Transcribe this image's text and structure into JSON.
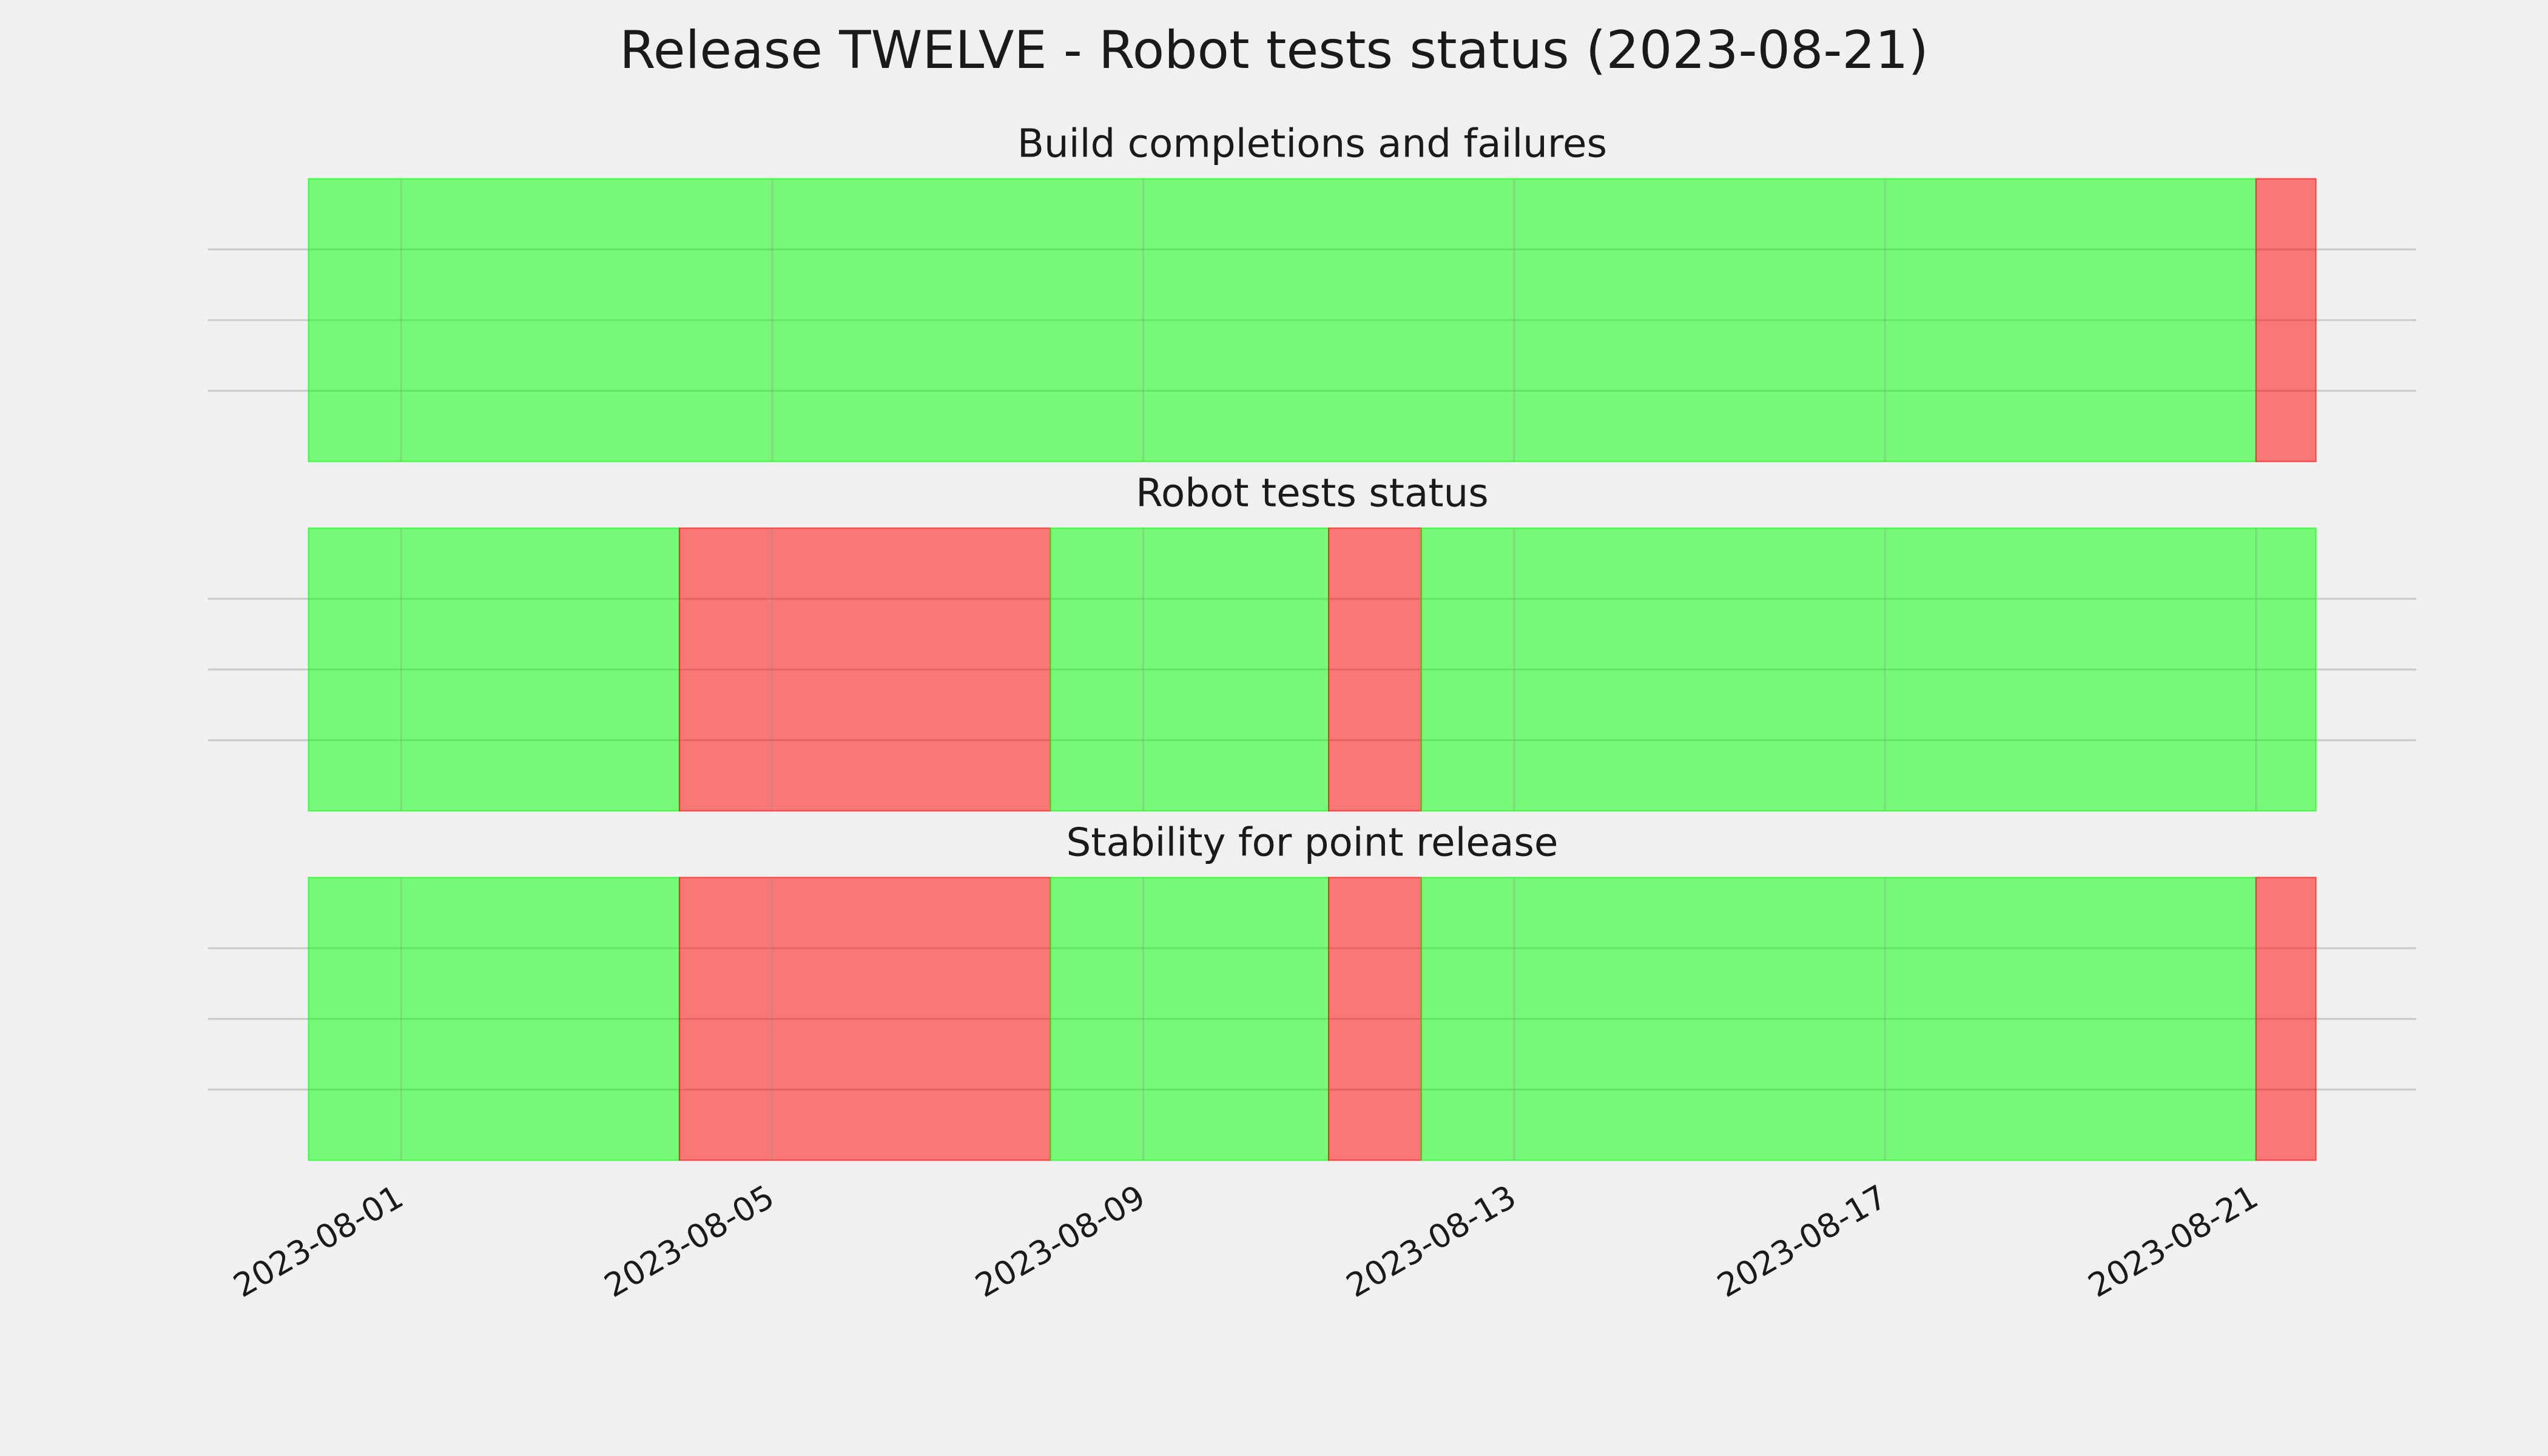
{
  "title": "Release TWELVE - Robot tests status (2023-08-21)",
  "chart_data": [
    {
      "type": "span",
      "title": "Build completions and failures",
      "spans": [
        {
          "start": "2023-07-31",
          "end": "2023-08-21",
          "color": "#00ff00"
        },
        {
          "start": "2023-08-21",
          "end": "2023-08-21T15:30",
          "color": "#ff0000"
        }
      ],
      "xlim": [
        "2023-07-29T22:00",
        "2023-08-22T17:30"
      ],
      "xticks": [
        "2023-08-01",
        "2023-08-05",
        "2023-08-09",
        "2023-08-13",
        "2023-08-17",
        "2023-08-21"
      ],
      "ylim": [
        0,
        1
      ],
      "yticks": [
        0.25,
        0.5,
        0.75
      ],
      "grid": true
    },
    {
      "type": "span",
      "title": "Robot tests status",
      "spans": [
        {
          "start": "2023-07-31",
          "end": "2023-08-04",
          "color": "#00ff00"
        },
        {
          "start": "2023-08-04",
          "end": "2023-08-08",
          "color": "#ff0000"
        },
        {
          "start": "2023-08-08",
          "end": "2023-08-11",
          "color": "#00ff00"
        },
        {
          "start": "2023-08-11",
          "end": "2023-08-12",
          "color": "#ff0000"
        },
        {
          "start": "2023-08-12",
          "end": "2023-08-21T15:30",
          "color": "#00ff00"
        }
      ],
      "xlim": [
        "2023-07-29T22:00",
        "2023-08-22T17:30"
      ],
      "xticks": [
        "2023-08-01",
        "2023-08-05",
        "2023-08-09",
        "2023-08-13",
        "2023-08-17",
        "2023-08-21"
      ],
      "ylim": [
        0,
        1
      ],
      "yticks": [
        0.25,
        0.5,
        0.75
      ],
      "grid": true
    },
    {
      "type": "span",
      "title": "Stability for point release",
      "spans": [
        {
          "start": "2023-07-31",
          "end": "2023-08-04",
          "color": "#00ff00"
        },
        {
          "start": "2023-08-04",
          "end": "2023-08-08",
          "color": "#ff0000"
        },
        {
          "start": "2023-08-08",
          "end": "2023-08-11",
          "color": "#00ff00"
        },
        {
          "start": "2023-08-11",
          "end": "2023-08-12",
          "color": "#ff0000"
        },
        {
          "start": "2023-08-12",
          "end": "2023-08-21",
          "color": "#00ff00"
        },
        {
          "start": "2023-08-21",
          "end": "2023-08-21T15:30",
          "color": "#ff0000"
        }
      ],
      "xlim": [
        "2023-07-29T22:00",
        "2023-08-22T17:30"
      ],
      "xticks": [
        "2023-08-01",
        "2023-08-05",
        "2023-08-09",
        "2023-08-13",
        "2023-08-17",
        "2023-08-21"
      ],
      "ylim": [
        0,
        1
      ],
      "yticks": [
        0.25,
        0.5,
        0.75
      ],
      "grid": true
    }
  ]
}
